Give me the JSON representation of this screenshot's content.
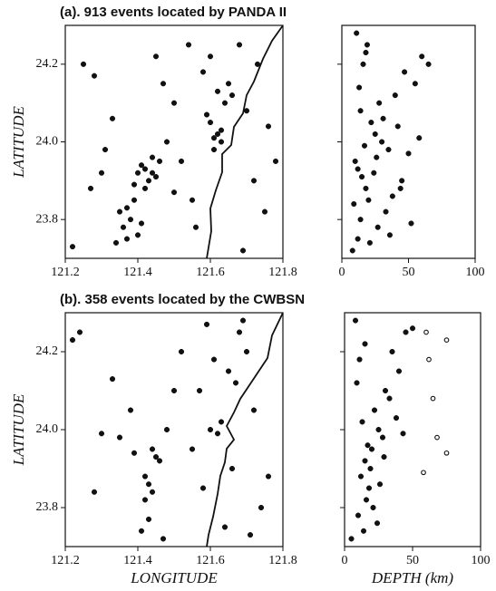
{
  "chart_data": [
    {
      "type": "scatter",
      "title": "(a). 913 events located by PANDA II",
      "ylabel": "LATITUDE",
      "xlim": [
        121.2,
        121.8
      ],
      "ylim": [
        23.7,
        24.3
      ],
      "xticks": [
        121.2,
        121.4,
        121.6,
        121.8
      ],
      "yticks": [
        23.8,
        {
          "value": 24,
          "label": "24.0"
        },
        24.2
      ],
      "series": [
        {
          "marker": "filled",
          "color": "#111111",
          "x": [
            121.42,
            121.44,
            121.41,
            121.45,
            121.43,
            121.4,
            121.46,
            121.39,
            121.44,
            121.42,
            121.37,
            121.38,
            121.36,
            121.39,
            121.35,
            121.4,
            121.41,
            121.37,
            121.62,
            121.63,
            121.61,
            121.64,
            121.66,
            121.62,
            121.6,
            121.63,
            121.65,
            121.61,
            121.59,
            121.6,
            121.58,
            121.25,
            121.28,
            121.22,
            121.3,
            121.33,
            121.5,
            121.52,
            121.55,
            121.48,
            121.7,
            121.72,
            121.75,
            121.68,
            121.78,
            121.73,
            121.54,
            121.47,
            121.31,
            121.27,
            121.56,
            121.69,
            121.76,
            121.45,
            121.5,
            121.34
          ],
          "y": [
            23.93,
            23.92,
            23.94,
            23.91,
            23.9,
            23.92,
            23.95,
            23.89,
            23.96,
            23.88,
            23.83,
            23.8,
            23.78,
            23.85,
            23.82,
            23.76,
            23.79,
            23.75,
            24.02,
            24.03,
            24.01,
            24.1,
            24.12,
            24.13,
            24.05,
            24.0,
            24.15,
            23.98,
            24.07,
            24.22,
            24.18,
            24.2,
            24.17,
            23.73,
            23.92,
            24.06,
            24.1,
            23.95,
            23.85,
            24.0,
            24.08,
            23.9,
            23.82,
            24.25,
            23.95,
            24.2,
            24.25,
            24.15,
            23.98,
            23.88,
            23.78,
            23.72,
            24.04,
            24.22,
            23.87,
            23.74
          ]
        }
      ]
    },
    {
      "type": "scatter",
      "xlim": [
        0,
        100
      ],
      "ylim": [
        23.7,
        24.3
      ],
      "xticks": [
        0,
        50,
        100
      ],
      "yticks": [
        23.8,
        24,
        24.2
      ],
      "series": [
        {
          "marker": "filled",
          "color": "#111111",
          "x": [
            12,
            15,
            10,
            18,
            14,
            20,
            25,
            30,
            22,
            35,
            28,
            12,
            8,
            16,
            40,
            45,
            50,
            55,
            60,
            65,
            33,
            27,
            19,
            11,
            14,
            38,
            42,
            24,
            17,
            9,
            52,
            47,
            31,
            21,
            13,
            26,
            36,
            58,
            44,
            18
          ],
          "y": [
            23.93,
            23.91,
            23.95,
            23.88,
            23.8,
            23.85,
            24.02,
            24.0,
            24.05,
            23.98,
            24.1,
            23.75,
            23.72,
            24.2,
            24.12,
            23.9,
            23.97,
            24.15,
            24.22,
            24.2,
            23.82,
            23.78,
            24.25,
            24.28,
            24.08,
            23.86,
            24.04,
            23.92,
            23.99,
            23.84,
            23.79,
            24.18,
            24.06,
            23.74,
            24.14,
            23.96,
            23.76,
            24.01,
            23.88,
            24.23
          ]
        }
      ]
    },
    {
      "type": "scatter",
      "title": "(b). 358 events located by the CWBSN",
      "ylabel": "LATITUDE",
      "xlabel": "LONGITUDE",
      "xlim": [
        121.2,
        121.8
      ],
      "ylim": [
        23.7,
        24.3
      ],
      "xticks": [
        121.2,
        121.4,
        121.6,
        121.8
      ],
      "yticks": [
        23.8,
        {
          "value": 24,
          "label": "24.0"
        },
        24.2
      ],
      "series": [
        {
          "marker": "filled",
          "color": "#111111",
          "x": [
            121.43,
            121.44,
            121.42,
            121.45,
            121.43,
            121.41,
            121.42,
            121.44,
            121.46,
            121.48,
            121.6,
            121.62,
            121.63,
            121.61,
            121.65,
            121.68,
            121.7,
            121.72,
            121.66,
            121.74,
            121.58,
            121.55,
            121.57,
            121.64,
            121.69,
            121.76,
            121.24,
            121.22,
            121.28,
            121.33,
            121.35,
            121.38,
            121.5,
            121.52,
            121.47,
            121.71,
            121.67,
            121.59,
            121.39,
            121.3
          ],
          "y": [
            23.86,
            23.84,
            23.82,
            23.93,
            23.77,
            23.74,
            23.88,
            23.95,
            23.92,
            24.0,
            24.0,
            23.99,
            24.02,
            24.18,
            24.15,
            24.25,
            24.2,
            24.05,
            23.9,
            23.8,
            23.85,
            23.95,
            24.1,
            23.75,
            24.28,
            23.88,
            24.25,
            24.23,
            23.84,
            24.13,
            23.98,
            24.05,
            24.1,
            24.2,
            23.72,
            23.73,
            24.12,
            24.27,
            23.94,
            23.99
          ]
        }
      ]
    },
    {
      "type": "scatter",
      "xlabel": "DEPTH (km)",
      "xlim": [
        0,
        100
      ],
      "ylim": [
        23.7,
        24.3
      ],
      "xticks": [
        0,
        50,
        100
      ],
      "yticks": [
        23.8,
        24,
        24.2
      ],
      "series": [
        {
          "marker": "filled",
          "color": "#111111",
          "x": [
            15,
            12,
            18,
            20,
            25,
            10,
            14,
            22,
            30,
            35,
            8,
            5,
            16,
            28,
            40,
            45,
            19,
            13,
            24,
            33,
            11,
            17,
            26,
            38,
            50,
            21,
            9,
            29,
            43,
            15
          ],
          "y": [
            23.92,
            23.88,
            23.85,
            23.95,
            24.0,
            23.78,
            23.74,
            24.05,
            24.1,
            24.2,
            24.28,
            23.72,
            23.82,
            23.98,
            24.15,
            24.25,
            23.9,
            24.02,
            23.76,
            24.08,
            24.18,
            23.96,
            23.86,
            24.03,
            24.26,
            23.8,
            24.12,
            23.93,
            23.99,
            24.22
          ]
        },
        {
          "marker": "open",
          "color": "#111111",
          "x": [
            60,
            75,
            62,
            65,
            68,
            75,
            58
          ],
          "y": [
            24.25,
            24.23,
            24.18,
            24.08,
            23.98,
            23.94,
            23.89
          ]
        }
      ]
    }
  ]
}
